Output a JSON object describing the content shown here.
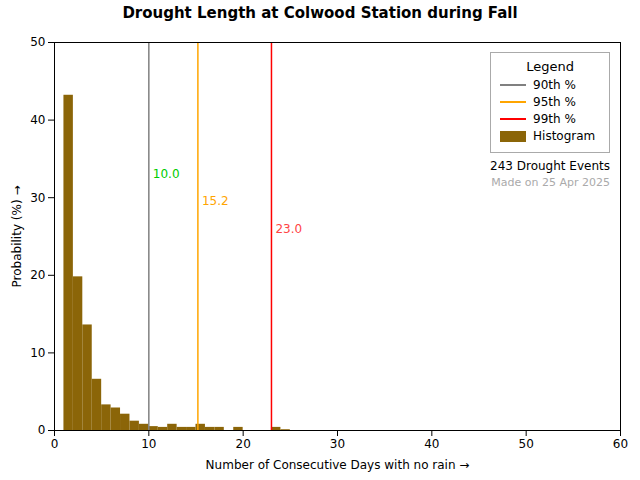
{
  "chart_data": {
    "type": "histogram",
    "title": "Drought Length at Colwood Station during Fall",
    "xlabel": "Number of Consecutive Days with no rain",
    "ylabel": "Probability (%)",
    "bins": [
      1,
      2,
      3,
      4,
      5,
      6,
      7,
      8,
      9,
      10,
      11,
      12,
      13,
      14,
      15,
      16,
      17,
      18,
      19,
      20,
      21,
      22,
      23,
      24,
      25,
      26,
      27,
      28,
      29,
      30,
      31
    ],
    "values": [
      43.2,
      19.8,
      13.6,
      6.6,
      3.3,
      2.9,
      2.1,
      1.2,
      0.8,
      0.5,
      0.4,
      0.8,
      0.4,
      0.4,
      0.8,
      0.4,
      0.4,
      0.0,
      0.4,
      0.0,
      0.0,
      0.0,
      0.4,
      0.1,
      0.0,
      0.0,
      0.0,
      0.0,
      0.0,
      0.0
    ],
    "name": "Histogram",
    "color": "#8B6508",
    "xlim": [
      0,
      60
    ],
    "ylim": [
      0,
      50
    ],
    "xticks": [
      0,
      10,
      20,
      30,
      40,
      50,
      60
    ],
    "yticks": [
      0,
      10,
      20,
      30,
      40,
      50
    ],
    "grid": false,
    "legend": "upper right",
    "legend_title": "Legend",
    "percentiles": [
      {
        "name": "90th %",
        "value": 10.0,
        "label": "10.0",
        "color": "#808080",
        "label_color": "#00CC00"
      },
      {
        "name": "95th %",
        "value": 15.2,
        "label": "15.2",
        "color": "#FFA500",
        "label_color": "#FFA500"
      },
      {
        "name": "99th %",
        "value": 23.0,
        "label": "23.0",
        "color": "#FF0000",
        "label_color": "#FF4444"
      }
    ],
    "annotations": [
      "243 Drought Events",
      "Made on 25 Apr 2025"
    ]
  }
}
